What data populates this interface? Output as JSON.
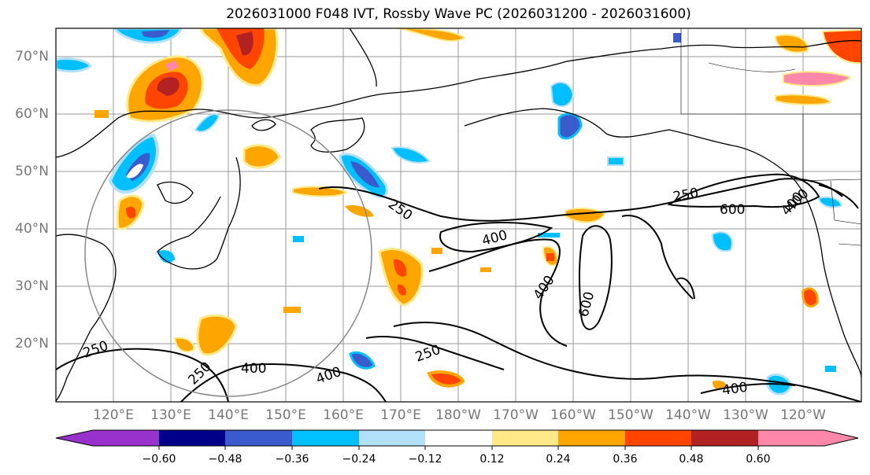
{
  "title": "2026031000 F048 IVT, Rossby Wave PC (2026031200 - 2026031600)",
  "lat_labels": [
    "70°N",
    "60°N",
    "50°N",
    "40°N",
    "30°N",
    "20°N"
  ],
  "lon_labels": [
    "120°E",
    "130°E",
    "140°E",
    "150°E",
    "160°E",
    "170°E",
    "180°W",
    "170°W",
    "160°W",
    "150°W",
    "140°W",
    "130°W",
    "120°W"
  ],
  "contour_labels": [
    "250",
    "400",
    "600",
    "250",
    "400",
    "600",
    "400",
    "400",
    "250",
    "250",
    "400",
    "400",
    "250",
    "400"
  ],
  "colorbar": {
    "colors": [
      "#9932cc",
      "#00008b",
      "#3a5bcc",
      "#00bfff",
      "#b0e0fa",
      "#ffffff",
      "#ffe989",
      "#ffa500",
      "#ff4500",
      "#b22222",
      "#ff88aa"
    ],
    "ticks": [
      "−0.60",
      "−0.48",
      "−0.36",
      "−0.24",
      "−0.12",
      "0.12",
      "0.24",
      "0.36",
      "0.48",
      "0.60"
    ]
  }
}
